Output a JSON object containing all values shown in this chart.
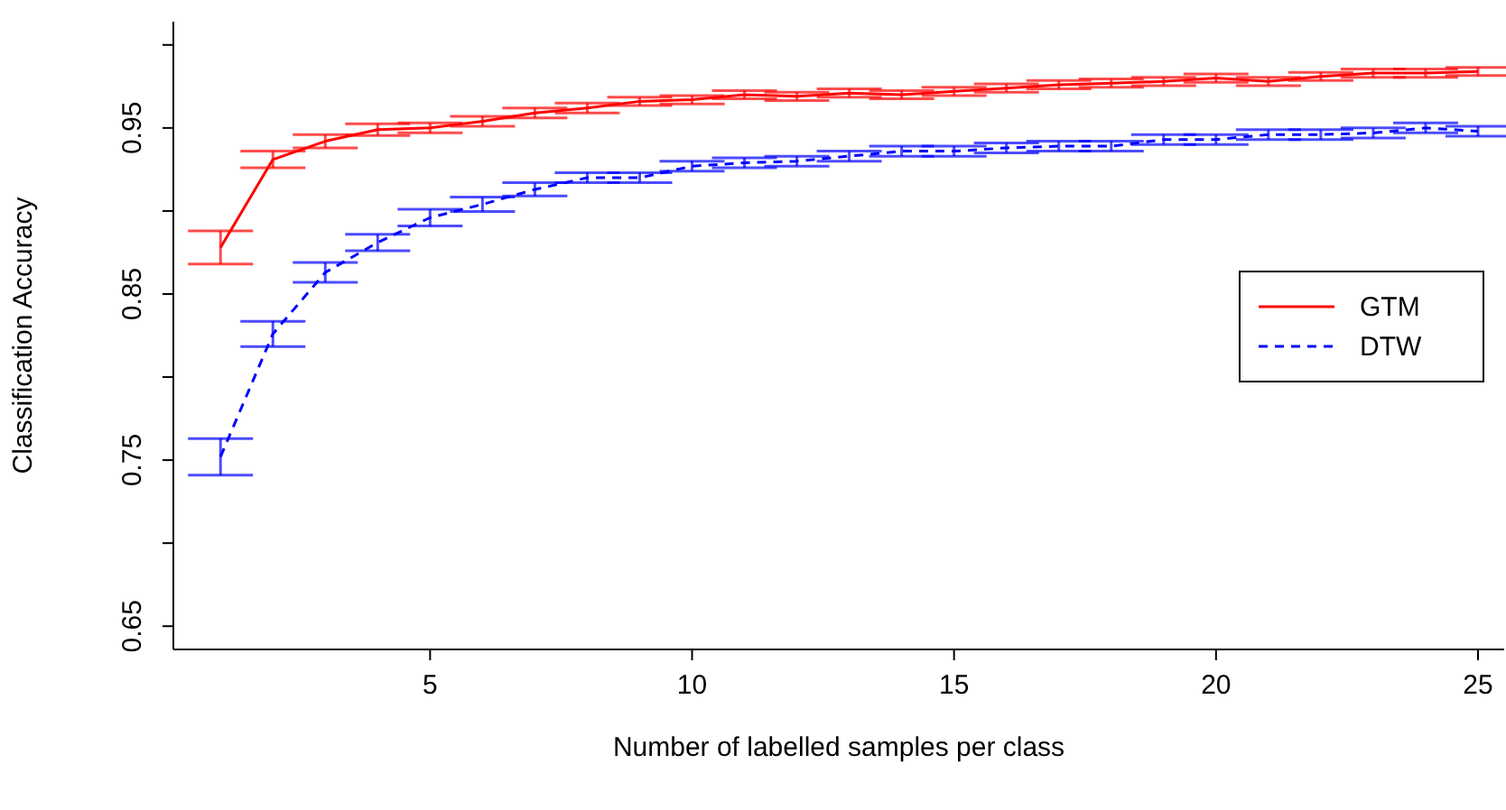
{
  "chart_data": {
    "type": "line",
    "xlabel": "Number of labelled samples per class",
    "ylabel": "Classification Accuracy",
    "x": [
      1,
      2,
      3,
      4,
      5,
      6,
      7,
      8,
      9,
      10,
      11,
      12,
      13,
      14,
      15,
      16,
      17,
      18,
      19,
      20,
      21,
      22,
      23,
      24,
      25
    ],
    "xlim": [
      0.1,
      25.5
    ],
    "xticks": [
      5,
      10,
      15,
      20,
      25
    ],
    "ylim": [
      0.636,
      1.014
    ],
    "yticks": [
      0.65,
      {
        "value": 0.7,
        "label": null
      },
      0.75,
      {
        "value": 0.8,
        "label": null
      },
      0.85,
      {
        "value": 0.9,
        "label": null
      },
      0.95,
      {
        "value": 1.0,
        "label": null
      }
    ],
    "legend": "right",
    "series": [
      {
        "name": "GTM",
        "color": "#ff0000",
        "line_style": "solid",
        "values": [
          0.878,
          0.931,
          0.942,
          0.949,
          0.95,
          0.954,
          0.959,
          0.962,
          0.966,
          0.967,
          0.97,
          0.969,
          0.971,
          0.97,
          0.972,
          0.974,
          0.976,
          0.977,
          0.978,
          0.98,
          0.978,
          0.981,
          0.983,
          0.983,
          0.984
        ],
        "errors": [
          0.01,
          0.005,
          0.004,
          0.0035,
          0.003,
          0.003,
          0.003,
          0.003,
          0.0025,
          0.0025,
          0.0025,
          0.0025,
          0.0025,
          0.0025,
          0.0025,
          0.0025,
          0.0025,
          0.0025,
          0.0025,
          0.0025,
          0.0025,
          0.0025,
          0.0025,
          0.0025,
          0.0025
        ]
      },
      {
        "name": "DTW",
        "color": "#0000ff",
        "line_style": "dashed",
        "values": [
          0.752,
          0.826,
          0.863,
          0.881,
          0.896,
          0.904,
          0.913,
          0.92,
          0.92,
          0.927,
          0.929,
          0.93,
          0.933,
          0.936,
          0.936,
          0.938,
          0.939,
          0.939,
          0.943,
          0.943,
          0.946,
          0.946,
          0.947,
          0.95,
          0.948
        ],
        "errors": [
          0.011,
          0.0076,
          0.006,
          0.005,
          0.005,
          0.0043,
          0.004,
          0.003,
          0.003,
          0.003,
          0.003,
          0.003,
          0.003,
          0.003,
          0.003,
          0.003,
          0.003,
          0.003,
          0.003,
          0.003,
          0.003,
          0.003,
          0.003,
          0.003,
          0.003
        ]
      }
    ]
  }
}
